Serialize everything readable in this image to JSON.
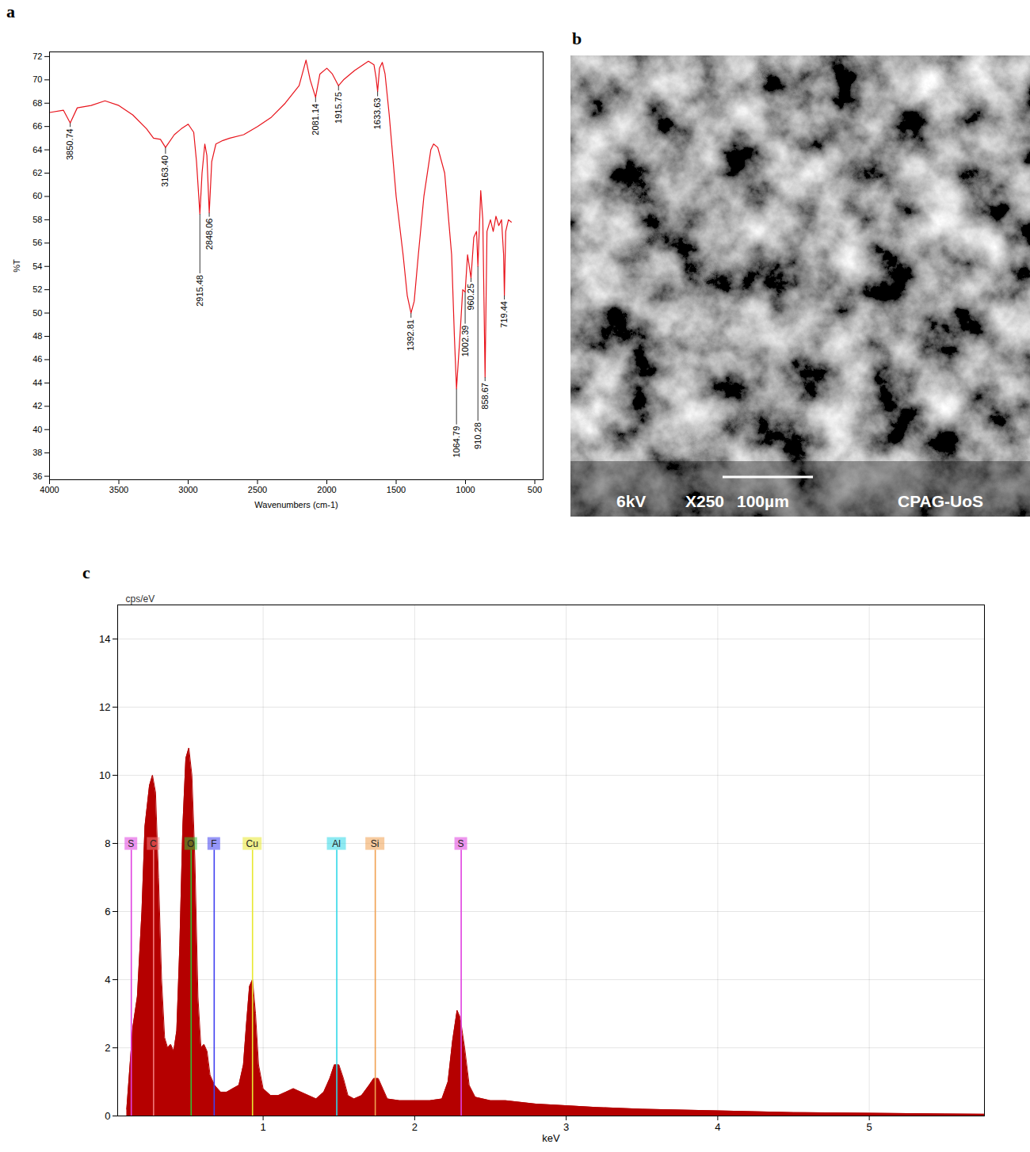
{
  "chart_data": [
    {
      "panel": "a",
      "type": "line",
      "x_label": "Wavenumbers (cm-1)",
      "y_label": "%T",
      "color": "#e8141c",
      "xlim": [
        4000,
        440
      ],
      "ylim": [
        35.7,
        72.4
      ],
      "xticks": [
        4000,
        3500,
        3000,
        2500,
        2000,
        1500,
        1000,
        500
      ],
      "yticks": [
        36,
        38,
        40,
        42,
        44,
        46,
        48,
        50,
        52,
        54,
        56,
        58,
        60,
        62,
        64,
        66,
        68,
        70,
        72
      ],
      "grid": false,
      "x": [
        4000,
        3900,
        3850.74,
        3800,
        3700,
        3600,
        3500,
        3400,
        3300,
        3250,
        3200,
        3163.4,
        3100,
        3050,
        3000,
        2960,
        2940,
        2915.48,
        2900,
        2880,
        2865,
        2848.06,
        2830,
        2800,
        2750,
        2700,
        2600,
        2500,
        2400,
        2300,
        2200,
        2150,
        2120,
        2081.14,
        2050,
        2000,
        1960,
        1915.75,
        1880,
        1800,
        1700,
        1660,
        1645,
        1633.63,
        1620,
        1600,
        1580,
        1550,
        1500,
        1450,
        1420,
        1392.81,
        1370,
        1340,
        1300,
        1250,
        1230,
        1200,
        1150,
        1100,
        1080,
        1064.79,
        1040,
        1020,
        1002.39,
        985,
        960.25,
        940,
        920,
        910.28,
        890,
        875,
        858.67,
        845,
        820,
        800,
        780,
        760,
        740,
        725,
        719.44,
        710,
        690,
        670
      ],
      "values": [
        67.2,
        67.4,
        66.3,
        67.6,
        67.8,
        68.2,
        67.8,
        67.0,
        65.8,
        65.0,
        64.9,
        64.2,
        65.3,
        65.8,
        66.2,
        65.5,
        63.0,
        58.5,
        62.0,
        64.5,
        63.5,
        58.6,
        63.0,
        64.5,
        64.8,
        65.0,
        65.3,
        66.0,
        66.8,
        68.0,
        69.5,
        71.7,
        70.0,
        68.5,
        70.5,
        71.0,
        70.5,
        69.5,
        70.0,
        70.8,
        71.6,
        71.3,
        70.2,
        69.0,
        71.0,
        71.5,
        70.5,
        67.0,
        60.0,
        55.0,
        51.5,
        50.0,
        51.0,
        55.0,
        60.0,
        64.0,
        64.5,
        64.2,
        62.0,
        55.0,
        48.0,
        43.5,
        48.0,
        52.0,
        51.8,
        55.0,
        53.0,
        56.5,
        57.0,
        54.0,
        60.5,
        58.0,
        44.5,
        57.0,
        58.0,
        57.0,
        58.3,
        57.5,
        58.0,
        55.0,
        51.5,
        57.0,
        58.0,
        57.8
      ],
      "annotations": [
        {
          "x": 3850.74,
          "y": 66.3,
          "label": "3850.74"
        },
        {
          "x": 3163.4,
          "y": 64.2,
          "label": "3163.40"
        },
        {
          "x": 2915.48,
          "y": 58.5,
          "label": "2915.48"
        },
        {
          "x": 2848.06,
          "y": 58.6,
          "label": "2848.06"
        },
        {
          "x": 2081.14,
          "y": 68.5,
          "label": "2081.14"
        },
        {
          "x": 1915.75,
          "y": 69.5,
          "label": "1915.75"
        },
        {
          "x": 1633.63,
          "y": 69.0,
          "label": "1633.63"
        },
        {
          "x": 1392.81,
          "y": 50.0,
          "label": "1392.81"
        },
        {
          "x": 1064.79,
          "y": 43.5,
          "label": "1064.79"
        },
        {
          "x": 1002.39,
          "y": 51.8,
          "label": "1002.39"
        },
        {
          "x": 960.25,
          "y": 53.0,
          "label": "960.25"
        },
        {
          "x": 910.28,
          "y": 54.0,
          "label": "910.28"
        },
        {
          "x": 858.67,
          "y": 44.5,
          "label": "858.67"
        },
        {
          "x": 719.44,
          "y": 51.5,
          "label": "719.44"
        }
      ]
    },
    {
      "panel": "c",
      "type": "area",
      "x_label": "keV",
      "y_label": "cps/eV",
      "color": "#b50000",
      "xlim": [
        0.04,
        5.76
      ],
      "ylim": [
        0,
        15
      ],
      "xticks": [
        1,
        2,
        3,
        4,
        5
      ],
      "yticks": [
        0,
        2,
        4,
        6,
        8,
        10,
        12,
        14
      ],
      "grid": true,
      "x": [
        0.1,
        0.14,
        0.17,
        0.2,
        0.22,
        0.25,
        0.27,
        0.29,
        0.31,
        0.33,
        0.35,
        0.37,
        0.39,
        0.41,
        0.43,
        0.45,
        0.47,
        0.49,
        0.51,
        0.53,
        0.55,
        0.57,
        0.59,
        0.61,
        0.63,
        0.65,
        0.68,
        0.72,
        0.76,
        0.8,
        0.84,
        0.87,
        0.89,
        0.91,
        0.93,
        0.95,
        0.97,
        1.0,
        1.05,
        1.1,
        1.15,
        1.2,
        1.25,
        1.3,
        1.35,
        1.4,
        1.44,
        1.47,
        1.5,
        1.53,
        1.56,
        1.6,
        1.65,
        1.7,
        1.73,
        1.76,
        1.79,
        1.82,
        1.9,
        2.0,
        2.1,
        2.18,
        2.22,
        2.25,
        2.28,
        2.3,
        2.33,
        2.36,
        2.4,
        2.5,
        2.6,
        2.8,
        3.0,
        3.2,
        3.5,
        4.0,
        4.5,
        5.0,
        5.5,
        5.76
      ],
      "values": [
        0.2,
        2.6,
        3.5,
        6,
        8.5,
        9.7,
        10,
        9.5,
        7,
        4,
        2.3,
        2,
        2.1,
        1.9,
        2.5,
        5,
        8.5,
        10.5,
        10.8,
        10,
        7.5,
        3.5,
        2,
        2.1,
        1.9,
        1.2,
        0.9,
        0.7,
        0.7,
        0.8,
        0.9,
        1.5,
        2.7,
        3.8,
        4,
        3,
        1.5,
        0.8,
        0.6,
        0.6,
        0.7,
        0.8,
        0.7,
        0.6,
        0.5,
        0.7,
        1.1,
        1.5,
        1.5,
        1.1,
        0.6,
        0.5,
        0.6,
        0.9,
        1.1,
        1.1,
        0.8,
        0.5,
        0.45,
        0.45,
        0.45,
        0.5,
        1,
        2.2,
        3.1,
        2.9,
        2,
        0.9,
        0.55,
        0.45,
        0.45,
        0.35,
        0.3,
        0.25,
        0.2,
        0.15,
        0.1,
        0.08,
        0.06,
        0.05
      ],
      "element_lines": [
        {
          "label": "S",
          "energy": 0.13,
          "color": "#e040e0"
        },
        {
          "label": "C",
          "energy": 0.277,
          "color": "#f07878"
        },
        {
          "label": "O",
          "energy": 0.525,
          "color": "#33c033"
        },
        {
          "label": "F",
          "energy": 0.677,
          "color": "#4040f0"
        },
        {
          "label": "Cu",
          "energy": 0.93,
          "color": "#e8e830"
        },
        {
          "label": "Al",
          "energy": 1.486,
          "color": "#30d8e8"
        },
        {
          "label": "Si",
          "energy": 1.74,
          "color": "#f0a050"
        },
        {
          "label": "S",
          "energy": 2.307,
          "color": "#e040e0"
        }
      ]
    }
  ],
  "image": {
    "panel": "b",
    "type": "image",
    "texts": [
      "6kV",
      "X250",
      "100µm",
      "CPAG-UoS"
    ]
  }
}
